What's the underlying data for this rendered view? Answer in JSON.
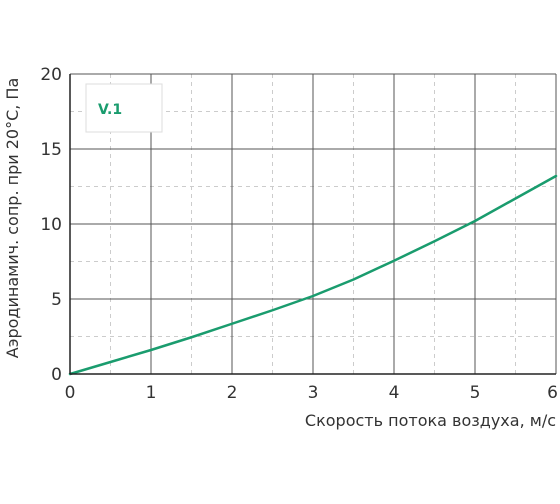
{
  "chart_data": {
    "type": "line",
    "xlabel": "Скорость потока воздуха, м/с",
    "ylabel": "Аэродинамич. сопр. при 20°С, Па",
    "xlim": [
      0,
      6
    ],
    "ylim": [
      0,
      20
    ],
    "x_ticks": [
      "0",
      "1",
      "2",
      "3",
      "4",
      "5",
      "6"
    ],
    "y_ticks": [
      "0",
      "5",
      "10",
      "15",
      "20"
    ],
    "grid": {
      "major": true,
      "minor": true
    },
    "legend_placement": "top-left",
    "series": [
      {
        "name": "V.1",
        "color": "#1a9c6e",
        "x": [
          0,
          0.5,
          1,
          1.5,
          2,
          2.5,
          3,
          3.5,
          4,
          4.5,
          5,
          5.5,
          6
        ],
        "y": [
          0,
          0.8,
          1.6,
          2.45,
          3.35,
          4.25,
          5.2,
          6.3,
          7.55,
          8.85,
          10.2,
          11.7,
          13.2
        ]
      }
    ]
  }
}
